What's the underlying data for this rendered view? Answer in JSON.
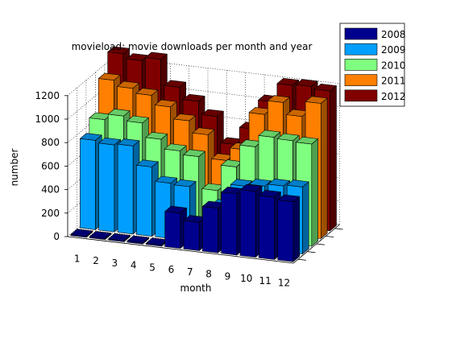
{
  "chart_data": {
    "type": "bar3d",
    "title": "movieload: movie downloads per month and year",
    "xlabel": "month",
    "ylabel": "number",
    "zlim": [
      0,
      1200
    ],
    "z_ticks": [
      0,
      200,
      400,
      600,
      800,
      1000,
      1200
    ],
    "categories": [
      "1",
      "2",
      "3",
      "4",
      "5",
      "6",
      "7",
      "8",
      "9",
      "10",
      "11",
      "12"
    ],
    "series": [
      {
        "name": "2008",
        "color": "#00008f",
        "values": [
          10,
          10,
          10,
          10,
          10,
          300,
          240,
          380,
          520,
          560,
          530,
          510
        ]
      },
      {
        "name": "2009",
        "color": "#009fff",
        "values": [
          760,
          740,
          750,
          590,
          470,
          460,
          130,
          330,
          520,
          540,
          560,
          570
        ]
      },
      {
        "name": "2010",
        "color": "#7fff7f",
        "values": [
          870,
          920,
          880,
          760,
          680,
          650,
          380,
          600,
          790,
          890,
          880,
          870
        ]
      },
      {
        "name": "2011",
        "color": "#ff7f00",
        "values": [
          1140,
          1090,
          1050,
          970,
          870,
          770,
          570,
          680,
          1000,
          1120,
          1020,
          1150
        ]
      },
      {
        "name": "2012",
        "color": "#800000",
        "values": [
          1300,
          1260,
          1290,
          1070,
          970,
          860,
          640,
          790,
          1040,
          1200,
          1210,
          1190
        ]
      }
    ]
  }
}
